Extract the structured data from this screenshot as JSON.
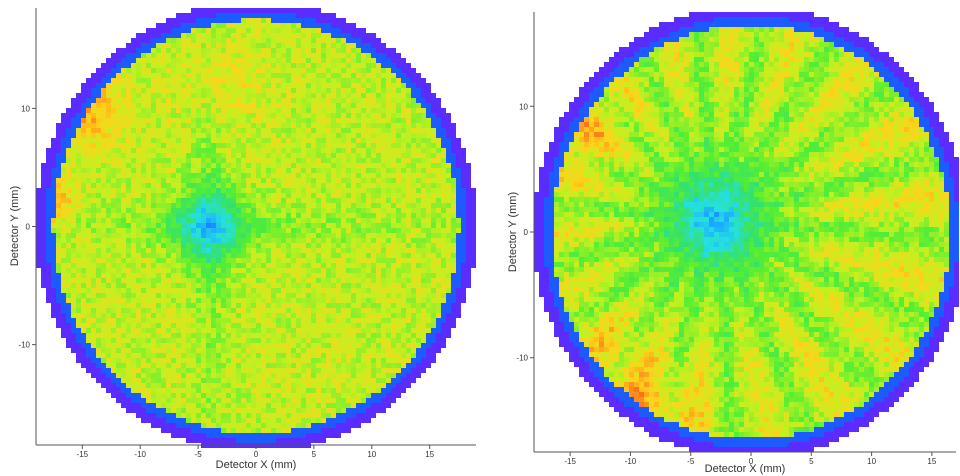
{
  "chart_data": [
    {
      "type": "heatmap",
      "xlabel": "Detector X (mm)",
      "ylabel": "Detector Y (mm)",
      "xlim": [
        -19,
        19
      ],
      "ylim": [
        -18.5,
        18.5
      ],
      "x_ticks": [
        "-15",
        "-10",
        "-5",
        "0",
        "5",
        "10",
        "15"
      ],
      "x_tick_values": [
        -15,
        -10,
        -5,
        0,
        5,
        10,
        15
      ],
      "y_ticks": [
        "10",
        "0",
        "-10"
      ],
      "y_tick_values": [
        10,
        0,
        -10
      ],
      "grid": false,
      "detector_radius_mm": 18.2,
      "colormap": [
        "#5a2cff",
        "#1560ff",
        "#1aa8ff",
        "#26e0e0",
        "#33e070",
        "#55ee33",
        "#c4f020",
        "#ffd21a",
        "#ff7a1a",
        "#e81c10"
      ],
      "pattern": "center hot spot at (-4, 0) with cross-shaped low-intensity arms; elevated intensity near (-16, 10) and (-18, 2)",
      "hotspot_mm": [
        -4,
        0
      ]
    },
    {
      "type": "heatmap",
      "xlabel": "Detector X (mm)",
      "ylabel": "Detector Y (mm)",
      "xlim": [
        -18,
        17
      ],
      "ylim": [
        -17.5,
        17.5
      ],
      "x_ticks": [
        "-15",
        "-10",
        "-5",
        "0",
        "5",
        "10",
        "15"
      ],
      "x_tick_values": [
        -15,
        -10,
        -5,
        0,
        5,
        10,
        15
      ],
      "y_ticks": [
        "10",
        "0",
        "-10"
      ],
      "y_tick_values": [
        10,
        0,
        -10
      ],
      "grid": false,
      "detector_radius_mm": 17.2,
      "colormap": [
        "#5a2cff",
        "#1560ff",
        "#1aa8ff",
        "#26e0e0",
        "#33e070",
        "#55ee33",
        "#c4f020",
        "#ffd21a",
        "#ff7a1a",
        "#e81c10"
      ],
      "pattern": "low-intensity region around (-3, 1) with radial streak pattern; elevated intensity along lower-left rim",
      "hotspot_mm": [
        -3,
        1
      ]
    }
  ]
}
